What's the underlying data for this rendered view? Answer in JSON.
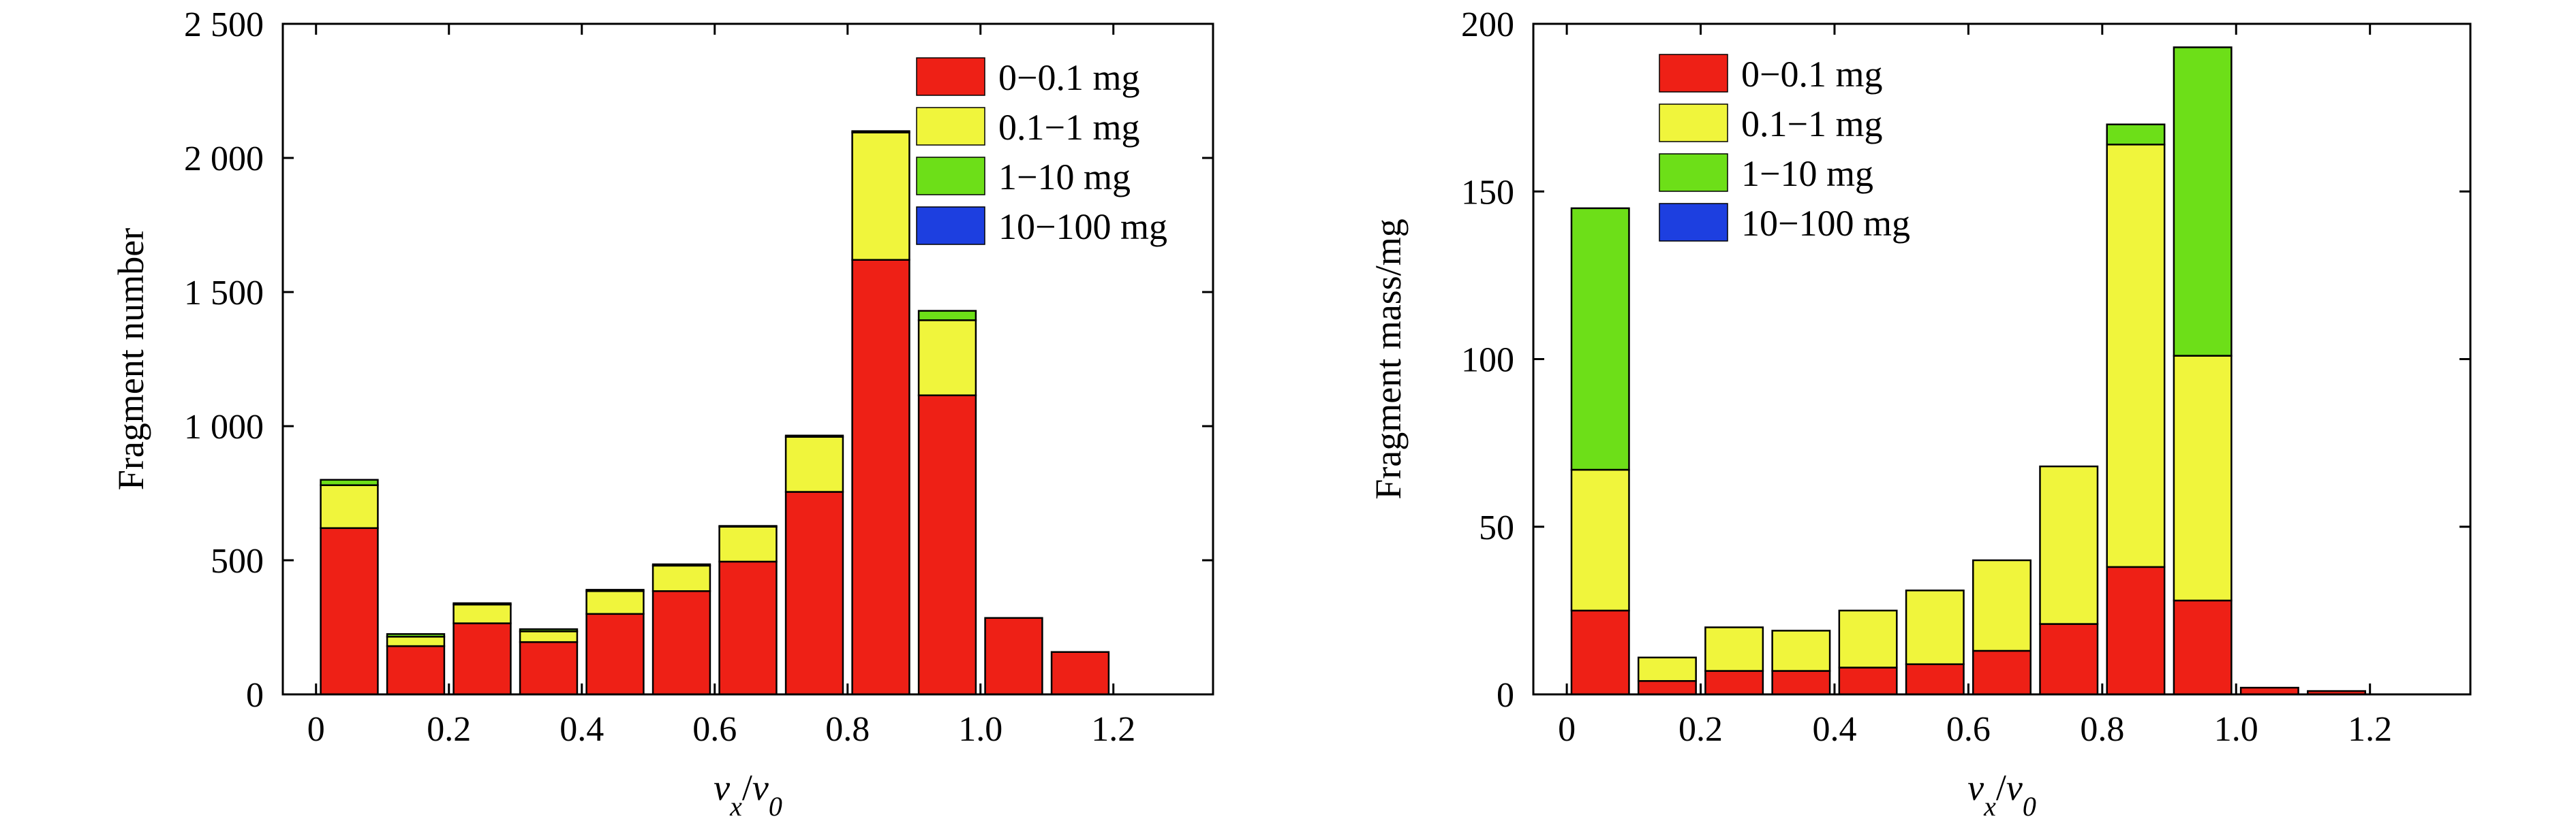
{
  "chart_data": [
    {
      "type": "bar",
      "stacked": true,
      "title": "",
      "xlabel": "v_x/v_0",
      "ylabel": "Fragment number",
      "ylim": [
        0,
        2500
      ],
      "xlim": [
        -0.05,
        1.35
      ],
      "x": [
        0.05,
        0.15,
        0.25,
        0.35,
        0.45,
        0.55,
        0.65,
        0.75,
        0.85,
        0.95,
        1.05,
        1.15
      ],
      "xticks": [
        0,
        0.2,
        0.4,
        0.6,
        0.8,
        1.0,
        1.2
      ],
      "xtick_labels": [
        "0",
        "0.2",
        "0.4",
        "0.6",
        "0.8",
        "1.0",
        "1.2"
      ],
      "yticks": [
        0,
        500,
        1000,
        1500,
        2000,
        2500
      ],
      "ytick_labels": [
        "0",
        "500",
        "1 000",
        "1 500",
        "2 000",
        "2 500"
      ],
      "legend_position": "top-right",
      "series": [
        {
          "name": "0−0.1 mg",
          "color": "#ee2016",
          "values": [
            620,
            180,
            265,
            195,
            300,
            385,
            495,
            755,
            1620,
            1115,
            285,
            158
          ]
        },
        {
          "name": "0.1−1 mg",
          "color": "#f0f53c",
          "values": [
            160,
            35,
            70,
            40,
            85,
            95,
            130,
            205,
            475,
            280,
            0,
            0
          ]
        },
        {
          "name": "1−10 mg",
          "color": "#6ddf18",
          "values": [
            20,
            10,
            5,
            8,
            5,
            5,
            3,
            5,
            5,
            35,
            0,
            0
          ]
        },
        {
          "name": "10−100 mg",
          "color": "#1d3fe0",
          "values": [
            0,
            0,
            0,
            0,
            0,
            0,
            0,
            0,
            0,
            0,
            0,
            0
          ]
        }
      ]
    },
    {
      "type": "bar",
      "stacked": true,
      "title": "",
      "xlabel": "v_x/v_0",
      "ylabel": "Fragment mass/mg",
      "ylim": [
        0,
        200
      ],
      "xlim": [
        -0.05,
        1.35
      ],
      "x": [
        0.05,
        0.15,
        0.25,
        0.35,
        0.45,
        0.55,
        0.65,
        0.75,
        0.85,
        0.95,
        1.05,
        1.15
      ],
      "xticks": [
        0,
        0.2,
        0.4,
        0.6,
        0.8,
        1.0,
        1.2
      ],
      "xtick_labels": [
        "0",
        "0.2",
        "0.4",
        "0.6",
        "0.8",
        "1.0",
        "1.2"
      ],
      "yticks": [
        0,
        50,
        100,
        150,
        200
      ],
      "ytick_labels": [
        "0",
        "50",
        "100",
        "150",
        "200"
      ],
      "legend_position": "top-left",
      "series": [
        {
          "name": "0−0.1 mg",
          "color": "#ee2016",
          "values": [
            25,
            4,
            7,
            7,
            8,
            9,
            13,
            21,
            38,
            28,
            2,
            1
          ]
        },
        {
          "name": "0.1−1 mg",
          "color": "#f0f53c",
          "values": [
            42,
            7,
            13,
            12,
            17,
            22,
            27,
            47,
            126,
            73,
            0,
            0
          ]
        },
        {
          "name": "1−10 mg",
          "color": "#6ddf18",
          "values": [
            78,
            0,
            0,
            0,
            0,
            0,
            0,
            0,
            6,
            92,
            0,
            0
          ]
        },
        {
          "name": "10−100 mg",
          "color": "#1d3fe0",
          "values": [
            0,
            0,
            0,
            0,
            0,
            0,
            0,
            0,
            0,
            0,
            0,
            0
          ]
        }
      ]
    }
  ]
}
